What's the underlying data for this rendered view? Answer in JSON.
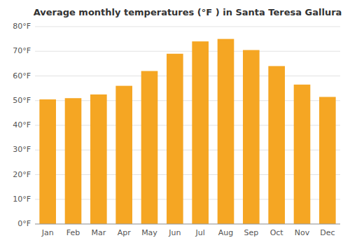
{
  "chart_data": {
    "type": "bar",
    "title": "Average monthly temperatures (°F ) in Santa Teresa Gallura",
    "categories": [
      "Jan",
      "Feb",
      "Mar",
      "Apr",
      "May",
      "Jun",
      "Jul",
      "Aug",
      "Sep",
      "Oct",
      "Nov",
      "Dec"
    ],
    "values": [
      50.5,
      51.0,
      52.5,
      56.0,
      62.0,
      69.0,
      74.0,
      75.0,
      70.5,
      64.0,
      56.5,
      51.5
    ],
    "color": "#F5A623",
    "ylim": [
      0,
      80
    ],
    "yticks": [
      {
        "value": 0,
        "label": "0°F"
      },
      {
        "value": 10,
        "label": "10°F"
      },
      {
        "value": 20,
        "label": "20°F"
      },
      {
        "value": 30,
        "label": "30°F"
      },
      {
        "value": 40,
        "label": "40°F"
      },
      {
        "value": 50,
        "label": "50°F"
      },
      {
        "value": 60,
        "label": "60°F"
      },
      {
        "value": 70,
        "label": "70°F"
      },
      {
        "value": 80,
        "label": "80°F"
      }
    ],
    "grid": true
  }
}
